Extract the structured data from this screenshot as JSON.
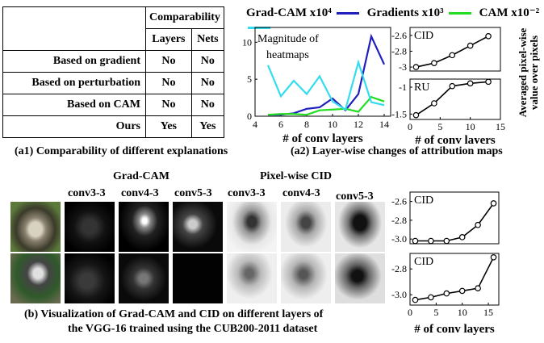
{
  "table": {
    "header_group": "Comparability",
    "col_headers": [
      "Layers",
      "Nets"
    ],
    "rows": [
      {
        "label": "Based on gradient",
        "layers": "No",
        "nets": "No"
      },
      {
        "label": "Based on perturbation",
        "layers": "No",
        "nets": "No"
      },
      {
        "label": "Based on CAM",
        "layers": "No",
        "nets": "No"
      },
      {
        "label": "Ours",
        "layers": "Yes",
        "nets": "Yes"
      }
    ]
  },
  "captions": {
    "a1": "(a1) Comparability of different explanations",
    "a2": "(a2) Layer-wise changes of attribution maps",
    "b_line1": "(b) Visualization of  Grad-CAM and CID on different layers of",
    "b_line2": "the VGG-16 trained using the CUB200-2011 dataset"
  },
  "legend": [
    {
      "label": "Grad-CAM x10⁴",
      "color": "#1f1fbf"
    },
    {
      "label": "Gradients x10³",
      "color": "#22dd22"
    },
    {
      "label": "CAM x10⁻²",
      "color": "#33ddee"
    }
  ],
  "a2_right_ylabel": [
    "Averaged pixel-wise",
    "value over pixels"
  ],
  "grid_headers": {
    "gradcam_group": "Grad-CAM",
    "cid_group": "Pixel-wise CID",
    "columns": [
      "conv3-3",
      "conv4-3",
      "conv5-3",
      "conv3-3",
      "conv4-3",
      "conv5-3"
    ]
  },
  "chart_data": [
    {
      "type": "line",
      "ylabel": "Magnitude of heatmaps",
      "xlabel": "# of conv layers",
      "xlim": [
        4,
        14.5
      ],
      "ylim": [
        0,
        12
      ],
      "xticks": [
        4,
        6,
        8,
        10,
        12,
        14
      ],
      "yticks": [
        0,
        5,
        10
      ],
      "x": [
        5,
        6,
        7,
        8,
        9,
        10,
        11,
        12,
        13,
        14
      ],
      "series": [
        {
          "name": "Grad-CAM x10⁴",
          "color": "#1f1fbf",
          "values": [
            0.2,
            0.2,
            0.4,
            1.0,
            1.2,
            2.4,
            0.8,
            3.0,
            10.8,
            7.0
          ]
        },
        {
          "name": "Gradients x10³",
          "color": "#22dd22",
          "values": [
            0.2,
            0.3,
            0.3,
            0.2,
            0.8,
            0.9,
            1.0,
            0.6,
            2.6,
            2.0
          ]
        },
        {
          "name": "CAM x10⁻²",
          "color": "#33ddee",
          "values": [
            6.9,
            2.7,
            4.8,
            3.0,
            5.4,
            2.0,
            0.9,
            7.3,
            1.9,
            1.5
          ]
        }
      ]
    },
    {
      "type": "line",
      "label": "CID",
      "xlim": [
        0,
        15
      ],
      "ylim": [
        -3.05,
        -2.5
      ],
      "yticks": [
        "-2.6",
        "-2.8",
        "-3"
      ],
      "x": [
        1,
        4,
        7,
        10,
        13
      ],
      "values": [
        -3.0,
        -2.95,
        -2.85,
        -2.73,
        -2.61
      ]
    },
    {
      "type": "line",
      "label": "RU",
      "xlim": [
        0,
        15
      ],
      "ylim": [
        -1.6,
        -0.85
      ],
      "xticks": [
        0,
        5,
        10,
        15
      ],
      "yticks": [
        "-1",
        "-1.5"
      ],
      "xlabel": "# of conv layers",
      "x": [
        1,
        4,
        7,
        10,
        13
      ],
      "values": [
        -1.52,
        -1.3,
        -0.98,
        -0.93,
        -0.9
      ]
    },
    {
      "type": "line",
      "label": "CID",
      "xlim": [
        0,
        17
      ],
      "ylim": [
        -3.05,
        -2.5
      ],
      "yticks": [
        "-2.6",
        "-2.8",
        "-3.0"
      ],
      "x": [
        1,
        4,
        7,
        10,
        13,
        16
      ],
      "values": [
        -3.02,
        -3.02,
        -3.02,
        -2.98,
        -2.85,
        -2.62
      ]
    },
    {
      "type": "line",
      "label": "CID",
      "xlim": [
        0,
        17
      ],
      "ylim": [
        -3.08,
        -2.68
      ],
      "xticks": [
        0,
        5,
        10,
        15
      ],
      "yticks": [
        "-2.8",
        "-3.0"
      ],
      "xlabel": "# of conv layers",
      "x": [
        1,
        4,
        7,
        10,
        13,
        16
      ],
      "values": [
        -3.04,
        -3.02,
        -2.99,
        -2.97,
        -2.95,
        -2.71
      ]
    }
  ]
}
